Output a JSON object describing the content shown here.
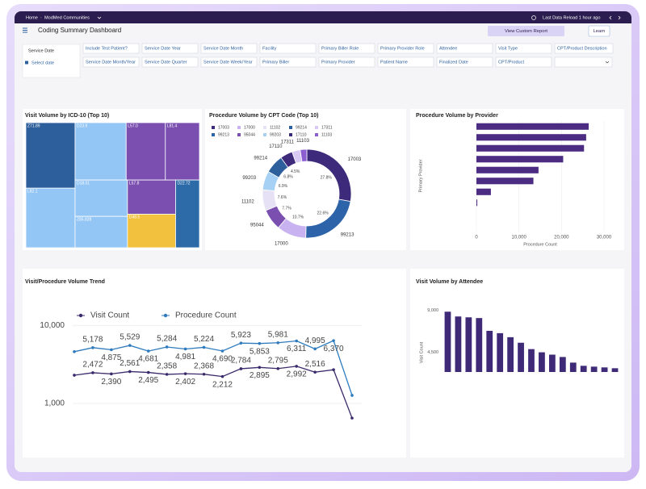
{
  "nav": {
    "home": "Home",
    "breadcrumb": "ModMed Communities",
    "reload": "Last Data Reload 1 hour ago"
  },
  "header": {
    "title": "Coding Summary Dashboard",
    "custom_report": "View Custom Report",
    "learn": "Learn"
  },
  "date_filter": {
    "label": "Service Date",
    "placeholder": "Select date"
  },
  "filters": [
    "Include Test Patient?",
    "Service Date Year",
    "Service Date Month",
    "Facility",
    "Primary Biller Role",
    "Primary Provider Role",
    "Attendee",
    "Visit Type",
    "CPT/Product Description",
    "Service Date Month/Year",
    "Service Date Quarter",
    "Service Date Week/Year",
    "Primary Biller",
    "Primary Provider",
    "Patient Name",
    "Finalized Date",
    "CPT/Product"
  ],
  "chart_data": [
    {
      "type": "treemap",
      "title": "Visit Volume by ICD-10 (Top 10)",
      "categories": [
        "Z71.89",
        "L82.1",
        "D23.9",
        "L57.0",
        "L81.4",
        "D18.01",
        "Z85.828",
        "L57.8",
        "D48.5",
        "D22.72"
      ],
      "values": [
        4950,
        4500,
        4500,
        3450,
        3000,
        2925,
        2520,
        2520,
        2480,
        2480
      ],
      "colors": [
        "#2d5f9c",
        "#93c6f5",
        "#93c6f5",
        "#7b4fb0",
        "#7b4fb0",
        "#93c6f5",
        "#93c6f5",
        "#7b4fb0",
        "#f2c13e",
        "#2c6aa8"
      ]
    },
    {
      "type": "donut",
      "title": "Procedure Volume by CPT Code (Top 10)",
      "categories": [
        "17003",
        "99213",
        "17000",
        "95044",
        "11102",
        "99203",
        "99214",
        "17110",
        "17311",
        "11103"
      ],
      "values": [
        27.8,
        22.6,
        10.7,
        7.7,
        7.6,
        6.9,
        6.8,
        4.5,
        3.0,
        2.4
      ],
      "value_labels": [
        "27.8%",
        "22.6%",
        "10.7%",
        "7.7%",
        "7.6%",
        "6.9%",
        "6.8%",
        "4.5%",
        null,
        null
      ],
      "colors": [
        "#3d2a7a",
        "#2d63a8",
        "#c8b3f0",
        "#7a4fb0",
        "#e6e1f5",
        "#a7d0f5",
        "#2d5f9c",
        "#3d2a7a",
        "#d8c9f5",
        "#8b5fcf"
      ]
    },
    {
      "type": "bar",
      "orientation": "horizontal",
      "title": "Procedure Volume by Provider",
      "ylabel": "Primary Provider",
      "xlabel": "Procedure Count",
      "categories": [
        null,
        null,
        null,
        null,
        null,
        null,
        null,
        null
      ],
      "values": [
        26400,
        25800,
        25300,
        20400,
        14600,
        13400,
        3400,
        200
      ],
      "color": "#4b2c82",
      "xlim": [
        0,
        30000
      ],
      "xticks": [
        0,
        {
          "value": 10000,
          "label": "10,000"
        },
        {
          "value": 20000,
          "label": "20,000"
        },
        {
          "value": 30000,
          "label": "30,000"
        }
      ],
      "grid": true
    },
    {
      "type": "line",
      "title": "Visit/Procedure Volume Trend",
      "log_scale": true,
      "categories": [
        null,
        null,
        null,
        null,
        null,
        null,
        null,
        null,
        null,
        null,
        null,
        null,
        null,
        null,
        null,
        null
      ],
      "ylim": [
        600,
        14000
      ],
      "yticks": [
        {
          "value": 1000,
          "label": "1,000"
        },
        {
          "value": 10000,
          "label": "10,000"
        }
      ],
      "grid": true,
      "legend": "top",
      "series": [
        {
          "name": "Visit Count",
          "color": "#3b2a6b",
          "values": [
            2300,
            2472,
            2390,
            2561,
            2495,
            2358,
            2402,
            2368,
            2212,
            2784,
            2895,
            2795,
            2992,
            2516,
            2700,
            650
          ],
          "value_labels": [
            null,
            "2,472",
            "2,390",
            "2,561",
            "2,495",
            "2,358",
            "2,402",
            "2,368",
            "2,212",
            "2,784",
            "2,895",
            "2,795",
            "2,992",
            "2,516",
            null,
            null
          ]
        },
        {
          "name": "Procedure Count",
          "color": "#2e7bbd",
          "values": [
            4600,
            5178,
            4875,
            5529,
            4681,
            5284,
            4981,
            5224,
            4690,
            5923,
            5853,
            5981,
            6311,
            4995,
            6370,
            1270
          ],
          "value_labels": [
            null,
            "5,178",
            "4,875",
            "5,529",
            "4,681",
            "5,284",
            "4,981",
            "5,224",
            "4,690",
            "5,923",
            "5,853",
            "5,981",
            "6,311",
            "4,995",
            "6,370",
            null
          ]
        }
      ]
    },
    {
      "type": "bar",
      "title": "Visit Volume by Attendee",
      "ylabel": "Visit Count",
      "categories": [
        null,
        null,
        null,
        null,
        null,
        null,
        null,
        null,
        null,
        null,
        null,
        null,
        null,
        null,
        null,
        null,
        null
      ],
      "values": [
        8830,
        8320,
        8230,
        8150,
        6790,
        6540,
        6110,
        5520,
        4840,
        4500,
        4250,
        4000,
        3400,
        3060,
        2970,
        2890,
        2800
      ],
      "color": "#3f2a78",
      "ylim": [
        2400,
        9800
      ],
      "yticks": [
        {
          "value": 4500,
          "label": "4,500"
        },
        {
          "value": 9000,
          "label": "9,000"
        }
      ]
    }
  ]
}
